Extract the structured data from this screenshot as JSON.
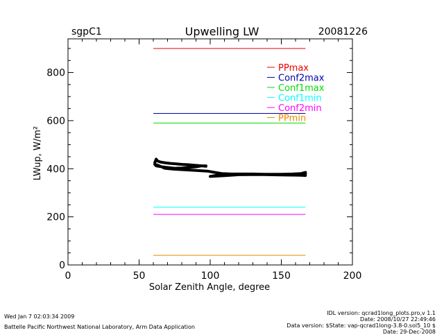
{
  "header": {
    "site": "sgpC1",
    "title": "Upwelling LW",
    "date": "20081226"
  },
  "footer": {
    "left_line1": "Wed Jan  7 02:03:34 2009",
    "left_line2": "Battelle Pacific Northwest National Laboratory, Arm Data Application",
    "right_lines": [
      "IDL version: qcrad1long_plots.pro,v 1.1",
      "Date: 2008/10/27 22:49:46",
      "Data version: $State: vap-qcrad1long-3.8-0.sol5_10 $",
      "Date: 29-Dec-2008"
    ]
  },
  "colors": {
    "PPmax": "#ee0000",
    "Conf2max": "#0000aa",
    "Conf1max": "#00dd00",
    "Conf1min": "#00ffff",
    "Conf2min": "#ff00ff",
    "PPmin": "#ee8800",
    "data": "#000000"
  },
  "chart_data": {
    "type": "line",
    "title": "Upwelling LW",
    "xlabel": "Solar Zenith Angle, degree",
    "ylabel": "LWup, W/m²",
    "xlim": [
      0,
      200
    ],
    "ylim": [
      0,
      940
    ],
    "xticks": [
      0,
      50,
      100,
      150,
      200
    ],
    "yticks": [
      0,
      200,
      400,
      600,
      800
    ],
    "x_minor_step": 10,
    "y_minor_step": 50,
    "grid": false,
    "legend_position": "top-right",
    "thresholds": [
      {
        "name": "PPmax",
        "value": 900,
        "x": [
          60,
          167
        ]
      },
      {
        "name": "Conf2max",
        "value": 630,
        "x": [
          60,
          167
        ]
      },
      {
        "name": "Conf1max",
        "value": 590,
        "x": [
          60,
          167
        ]
      },
      {
        "name": "Conf1min",
        "value": 240,
        "x": [
          60,
          167
        ]
      },
      {
        "name": "Conf2min",
        "value": 210,
        "x": [
          60,
          167
        ]
      },
      {
        "name": "PPmin",
        "value": 40,
        "x": [
          60,
          167
        ]
      }
    ],
    "series": [
      {
        "points": [
          [
            61,
            425
          ],
          [
            62,
            440
          ],
          [
            63,
            432
          ],
          [
            65,
            428
          ],
          [
            68,
            425
          ],
          [
            72,
            422
          ],
          [
            76,
            420
          ],
          [
            80,
            418
          ],
          [
            84,
            417
          ],
          [
            88,
            415
          ],
          [
            92,
            413
          ],
          [
            97,
            410
          ],
          [
            97,
            412
          ],
          [
            94,
            412
          ],
          [
            90,
            408
          ],
          [
            85,
            406
          ],
          [
            80,
            403
          ],
          [
            75,
            402
          ],
          [
            70,
            405
          ],
          [
            66,
            408
          ],
          [
            62,
            412
          ],
          [
            61,
            418
          ],
          [
            63,
            415
          ],
          [
            68,
            402
          ],
          [
            75,
            398
          ],
          [
            82,
            396
          ],
          [
            90,
            393
          ],
          [
            98,
            390
          ],
          [
            103,
            385
          ],
          [
            108,
            380
          ],
          [
            115,
            378
          ],
          [
            122,
            378
          ],
          [
            130,
            377
          ],
          [
            138,
            376
          ],
          [
            146,
            375
          ],
          [
            154,
            375
          ],
          [
            160,
            376
          ],
          [
            164,
            377
          ],
          [
            167,
            378
          ],
          [
            167,
            385
          ],
          [
            164,
            380
          ],
          [
            158,
            378
          ],
          [
            150,
            377
          ],
          [
            140,
            377
          ],
          [
            130,
            378
          ],
          [
            120,
            378
          ],
          [
            110,
            374
          ],
          [
            104,
            372
          ],
          [
            100,
            368
          ],
          [
            110,
            371
          ],
          [
            120,
            375
          ],
          [
            135,
            376
          ],
          [
            150,
            374
          ],
          [
            162,
            373
          ],
          [
            167,
            372
          ]
        ]
      }
    ]
  }
}
